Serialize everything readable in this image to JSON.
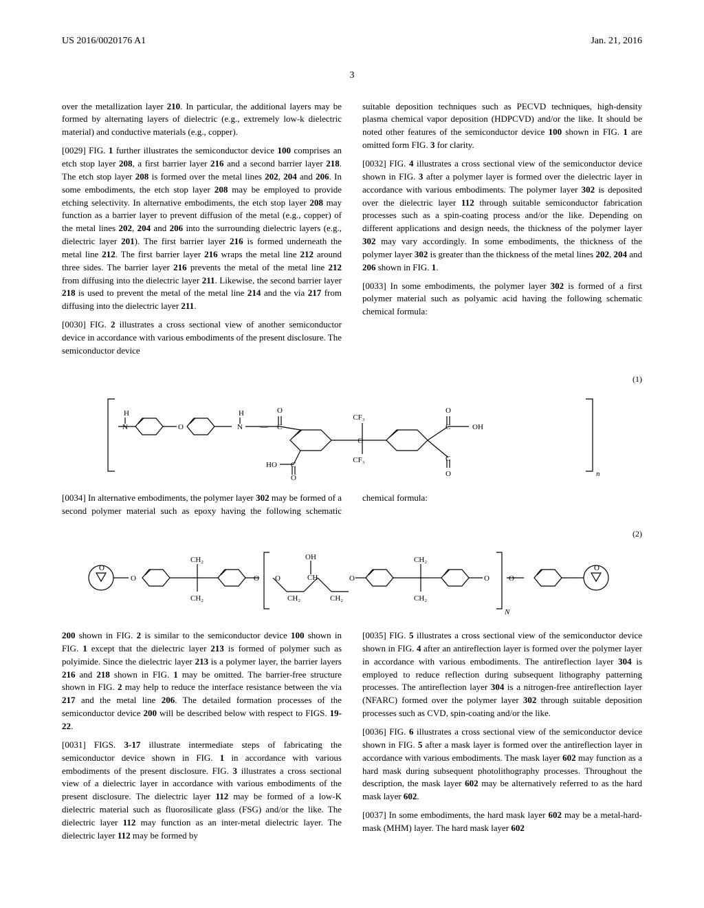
{
  "header": {
    "pub_number": "US 2016/0020176 A1",
    "date": "Jan. 21, 2016"
  },
  "page_number": "3",
  "paragraphs": {
    "p_intro": "over the metallization layer 210. In particular, the additional layers may be formed by alternating layers of dielectric (e.g., extremely low-k dielectric material) and conductive materials (e.g., copper).",
    "p29": "[0029]   FIG. 1 further illustrates the semiconductor device 100 comprises an etch stop layer 208, a first barrier layer 216 and a second barrier layer 218. The etch stop layer 208 is formed over the metal lines 202, 204 and 206. In some embodiments, the etch stop layer 208 may be employed to provide etching selectivity. In alternative embodiments, the etch stop layer 208 may function as a barrier layer to prevent diffusion of the metal (e.g., copper) of the metal lines 202, 204 and 206 into the surrounding dielectric layers (e.g., dielectric layer 201). The first barrier layer 216 is formed underneath the metal line 212. The first barrier layer 216 wraps the metal line 212 around three sides. The barrier layer 216 prevents the metal of the metal line 212 from diffusing into the dielectric layer 211. Likewise, the second barrier layer 218 is used to prevent the metal of the metal line 214 and the via 217 from diffusing into the dielectric layer 211.",
    "p30": "[0030]   FIG. 2 illustrates a cross sectional view of another semiconductor device in accordance with various embodiments of the present disclosure. The semiconductor device",
    "p_col2_top": "suitable deposition techniques such as PECVD techniques, high-density plasma chemical vapor deposition (HDPCVD) and/or the like. It should be noted other features of the semiconductor device 100 shown in FIG. 1 are omitted form FIG. 3 for clarity.",
    "p32": "[0032]   FIG. 4 illustrates a cross sectional view of the semiconductor device shown in FIG. 3 after a polymer layer is formed over the dielectric layer in accordance with various embodiments. The polymer layer 302 is deposited over the dielectric layer 112 through suitable semiconductor fabrication processes such as a spin-coating process and/or the like. Depending on different applications and design needs, the thickness of the polymer layer 302 may vary accordingly. In some embodiments, the thickness of the polymer layer 302 is greater than the thickness of the metal lines 202, 204 and 206 shown in FIG. 1.",
    "p33": "[0033]   In some embodiments, the polymer layer 302 is formed of a first polymer material such as polyamic acid having the following schematic chemical formula:",
    "p34": "[0034]   In alternative embodiments, the polymer layer 302 may be formed of a second polymer material such as epoxy having the following schematic chemical formula:",
    "p_cont200": "200 shown in FIG. 2 is similar to the semiconductor device 100 shown in FIG. 1 except that the dielectric layer 213 is formed of polymer such as polyimide. Since the dielectric layer 213 is a polymer layer, the barrier layers 216 and 218 shown in FIG. 1 may be omitted. The barrier-free structure shown in FIG. 2 may help to reduce the interface resistance between the via 217 and the metal line 206. The detailed formation processes of the semiconductor device 200 will be described below with respect to FIGS. 19-22.",
    "p31": "[0031]   FIGS. 3-17 illustrate intermediate steps of fabricating the semiconductor device shown in FIG. 1 in accordance with various embodiments of the present disclosure. FIG. 3 illustrates a cross sectional view of a dielectric layer in accordance with various embodiments of the present disclosure. The dielectric layer 112 may be formed of a low-K dielectric material such as fluorosilicate glass (FSG) and/or the like. The dielectric layer 112 may function as an inter-metal dielectric layer. The dielectric layer 112 may be formed by",
    "p35": "[0035]   FIG. 5 illustrates a cross sectional view of the semiconductor device shown in FIG. 4 after an antireflection layer is formed over the polymer layer in accordance with various embodiments. The antireflection layer 304 is employed to reduce reflection during subsequent lithography patterning processes. The antireflection layer 304 is a nitrogen-free antireflection layer (NFARC) formed over the polymer layer 302 through suitable deposition processes such as CVD, spin-coating and/or the like.",
    "p36": "[0036]   FIG. 6 illustrates a cross sectional view of the semiconductor device shown in FIG. 5 after a mask layer is formed over the antireflection layer in accordance with various embodiments. The mask layer 602 may function as a hard mask during subsequent photolithography processes. Throughout the description, the mask layer 602 may be alternatively referred to as the hard mask layer 602.",
    "p37": "[0037]   In some embodiments, the hard mask layer 602 may be a metal-hard-mask (MHM) layer. The hard mask layer 602"
  },
  "formula_labels": {
    "f1": "(1)",
    "f2": "(2)"
  },
  "chem1": {
    "labels": {
      "H1": "H",
      "N1": "N",
      "O1": "O",
      "H2": "H",
      "O2": "O",
      "N2": "N",
      "C1": "C",
      "CF3a": "CF₃",
      "CF3b": "CF₃",
      "Cmid": "C",
      "OH": "OH",
      "HO": "HO",
      "Cbot": "C",
      "Obot": "O",
      "Cright": "C",
      "Oright": "O",
      "Cright2": "C",
      "n": "n"
    },
    "style": {
      "stroke": "#000",
      "stroke_width": 1.2,
      "font_size": 11,
      "font_family": "Times New Roman"
    }
  },
  "chem2": {
    "labels": {
      "O": "O",
      "CH2": "CH₂",
      "CH": "CH",
      "OH": "OH",
      "N": "N"
    },
    "style": {
      "stroke": "#000",
      "stroke_width": 1.2,
      "font_size": 11,
      "font_family": "Times New Roman"
    }
  }
}
